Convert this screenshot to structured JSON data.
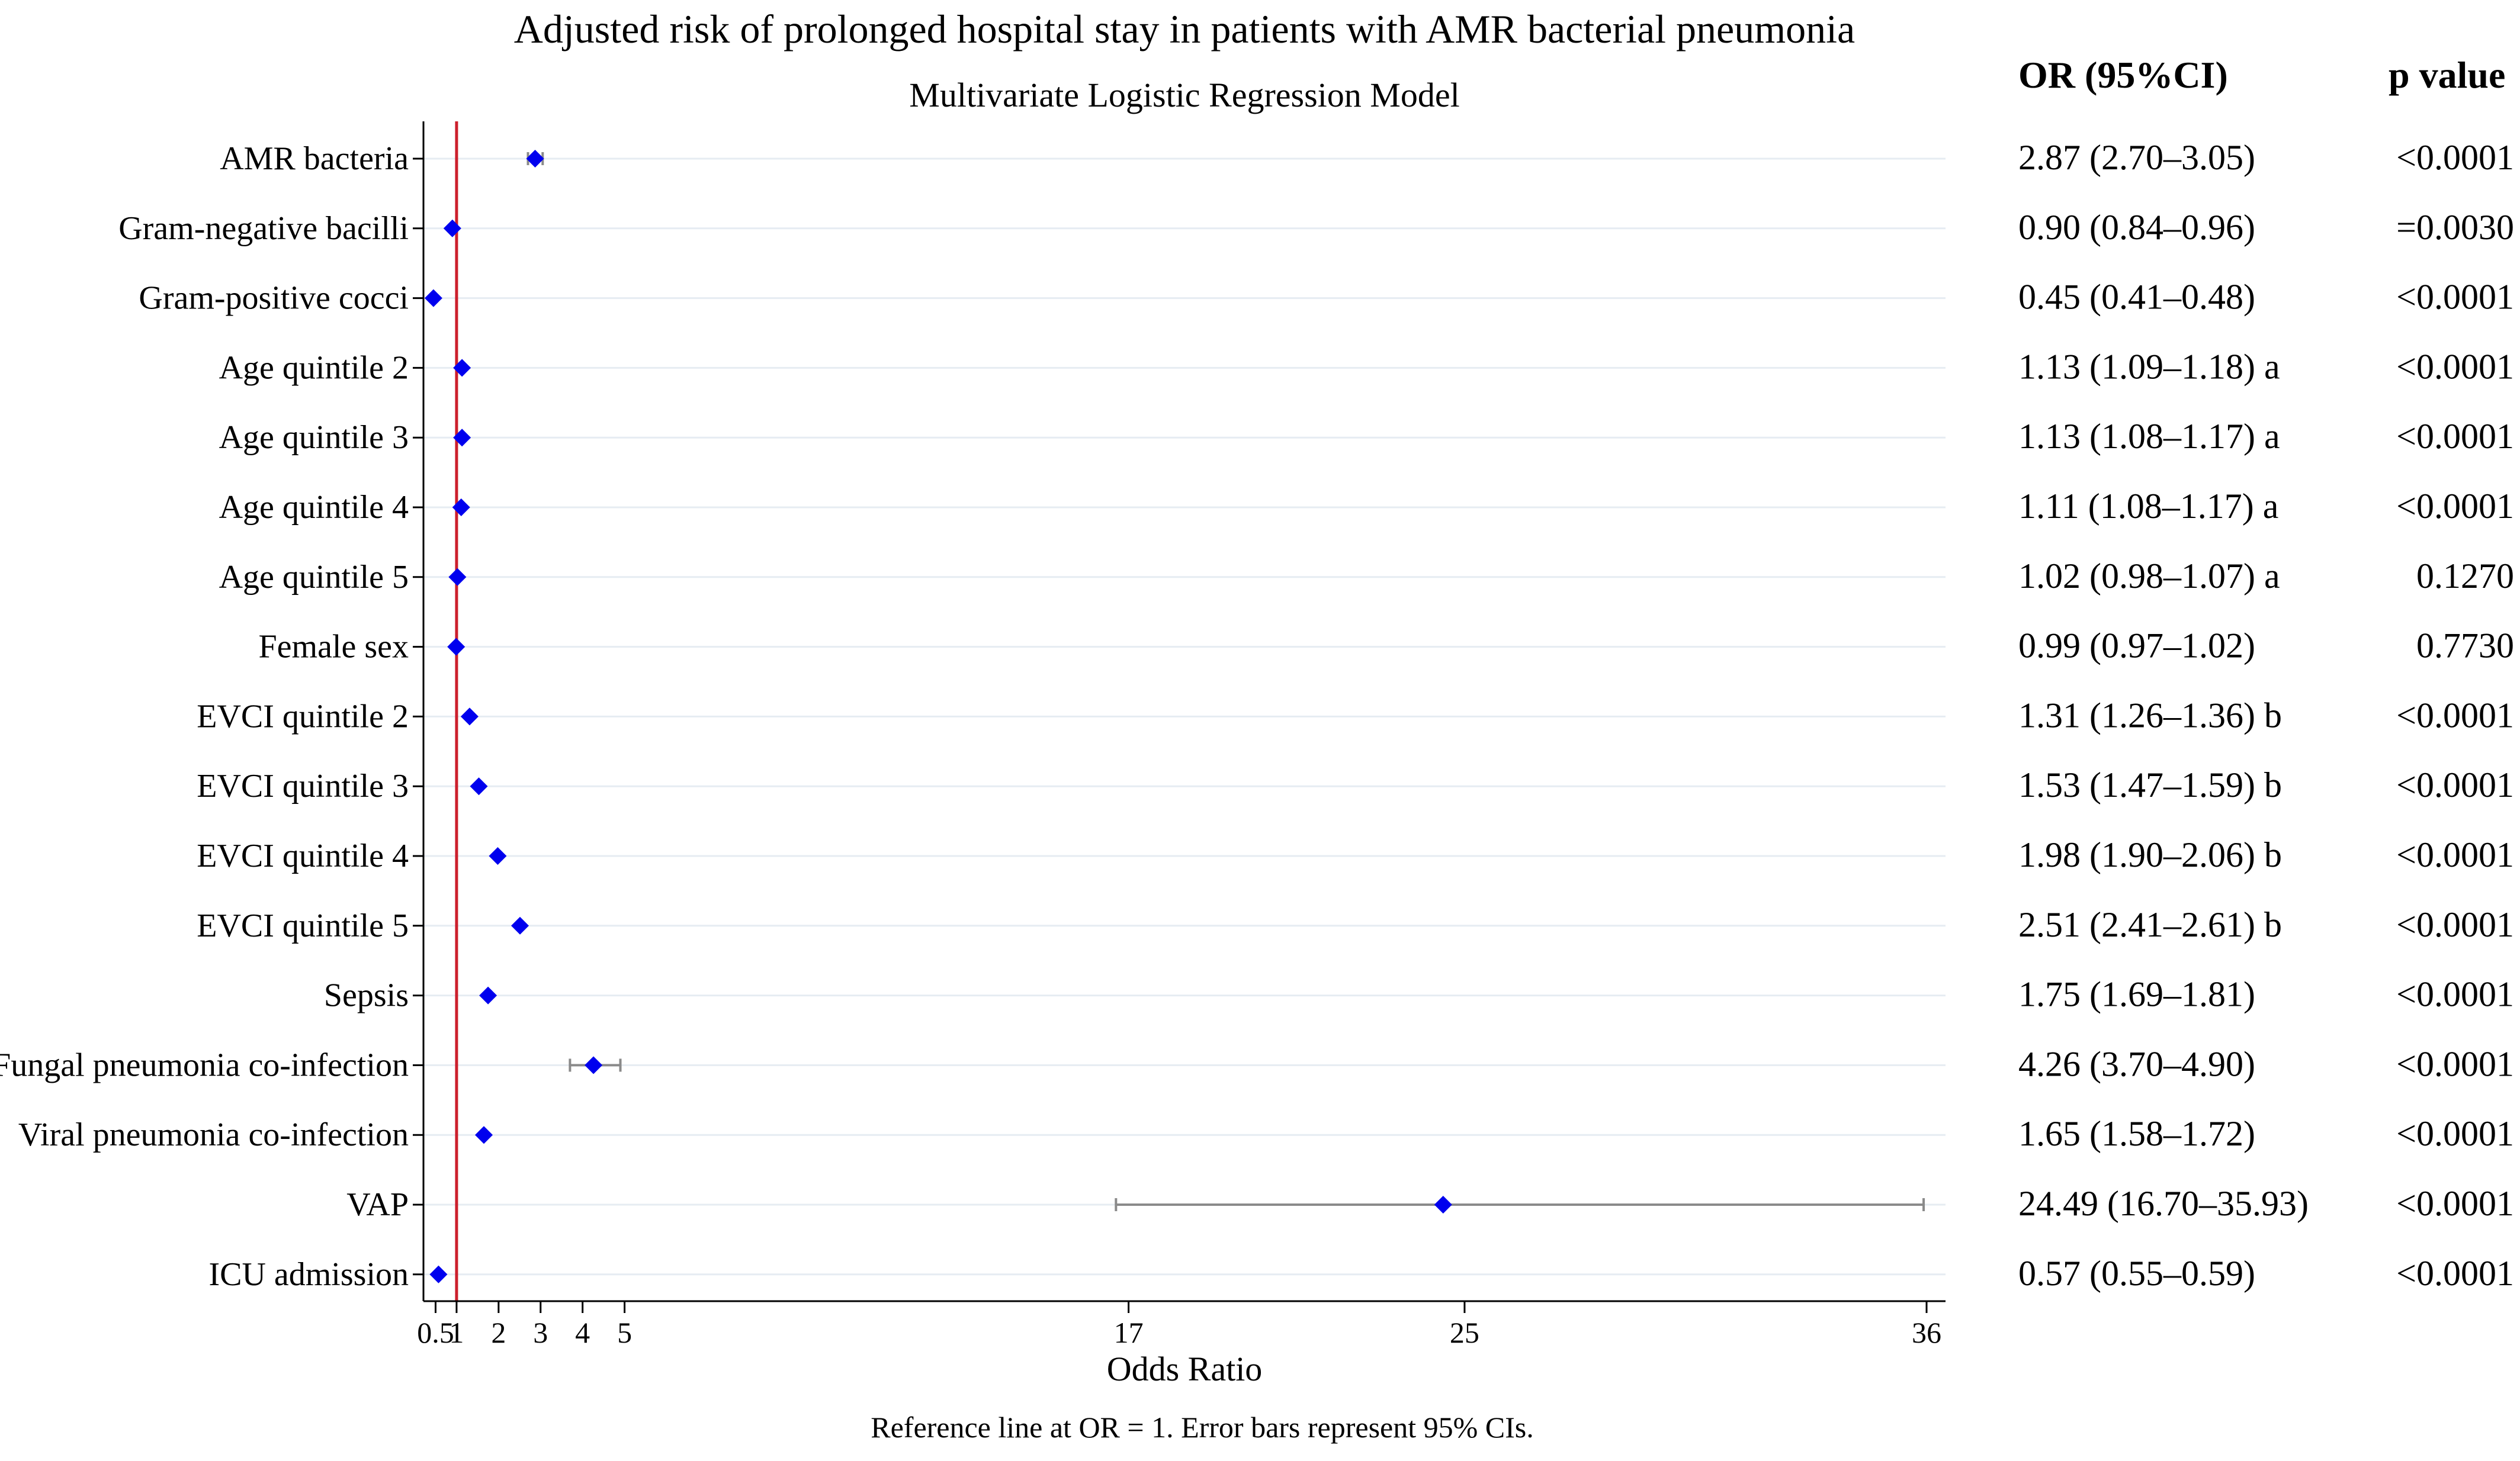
{
  "chart_data": {
    "type": "forest",
    "title": "Adjusted risk of prolonged hospital stay in patients with AMR bacterial pneumonia",
    "subtitle": "Multivariate Logistic Regression Model",
    "xlabel": "Odds Ratio",
    "x_ticks": [
      0.5,
      1,
      2,
      3,
      4,
      5,
      17,
      25,
      36
    ],
    "x_tick_labels": [
      "0.5",
      "1",
      "2",
      "3",
      "4",
      "5",
      "17",
      "25",
      "36"
    ],
    "reference_line": 1,
    "note": "Reference line at OR = 1. Error bars represent 95% CIs.",
    "column_headers": {
      "or": "OR (95%CI)",
      "p": "p value"
    },
    "rows": [
      {
        "label": "AMR bacteria",
        "or": 2.87,
        "lo": 2.7,
        "hi": 3.05,
        "or_text": "2.87 (2.70–3.05)",
        "p_text": "<0.0001"
      },
      {
        "label": "Gram-negative bacilli",
        "or": 0.9,
        "lo": 0.84,
        "hi": 0.96,
        "or_text": "0.90 (0.84–0.96)",
        "p_text": "=0.0030"
      },
      {
        "label": "Gram-positive cocci",
        "or": 0.45,
        "lo": 0.41,
        "hi": 0.48,
        "or_text": "0.45 (0.41–0.48)",
        "p_text": "<0.0001"
      },
      {
        "label": "Age quintile 2",
        "or": 1.13,
        "lo": 1.09,
        "hi": 1.18,
        "or_text": "1.13 (1.09–1.18) a",
        "p_text": "<0.0001"
      },
      {
        "label": "Age quintile 3",
        "or": 1.13,
        "lo": 1.08,
        "hi": 1.17,
        "or_text": "1.13 (1.08–1.17) a",
        "p_text": "<0.0001"
      },
      {
        "label": "Age quintile 4",
        "or": 1.11,
        "lo": 1.08,
        "hi": 1.17,
        "or_text": "1.11 (1.08–1.17) a",
        "p_text": "<0.0001"
      },
      {
        "label": "Age quintile 5",
        "or": 1.02,
        "lo": 0.98,
        "hi": 1.07,
        "or_text": "1.02 (0.98–1.07) a",
        "p_text": "0.1270"
      },
      {
        "label": "Female sex",
        "or": 0.99,
        "lo": 0.97,
        "hi": 1.02,
        "or_text": "0.99 (0.97–1.02)",
        "p_text": "0.7730"
      },
      {
        "label": "EVCI quintile 2",
        "or": 1.31,
        "lo": 1.26,
        "hi": 1.36,
        "or_text": "1.31 (1.26–1.36) b",
        "p_text": "<0.0001"
      },
      {
        "label": "EVCI quintile 3",
        "or": 1.53,
        "lo": 1.47,
        "hi": 1.59,
        "or_text": "1.53 (1.47–1.59) b",
        "p_text": "<0.0001"
      },
      {
        "label": "EVCI quintile 4",
        "or": 1.98,
        "lo": 1.9,
        "hi": 2.06,
        "or_text": "1.98 (1.90–2.06) b",
        "p_text": "<0.0001"
      },
      {
        "label": "EVCI quintile 5",
        "or": 2.51,
        "lo": 2.41,
        "hi": 2.61,
        "or_text": "2.51 (2.41–2.61) b",
        "p_text": "<0.0001"
      },
      {
        "label": "Sepsis",
        "or": 1.75,
        "lo": 1.69,
        "hi": 1.81,
        "or_text": "1.75 (1.69–1.81)",
        "p_text": "<0.0001"
      },
      {
        "label": "Fungal pneumonia co-infection",
        "or": 4.26,
        "lo": 3.7,
        "hi": 4.9,
        "or_text": "4.26 (3.70–4.90)",
        "p_text": "<0.0001"
      },
      {
        "label": "Viral pneumonia co-infection",
        "or": 1.65,
        "lo": 1.58,
        "hi": 1.72,
        "or_text": "1.65 (1.58–1.72)",
        "p_text": "<0.0001"
      },
      {
        "label": "VAP",
        "or": 24.49,
        "lo": 16.7,
        "hi": 35.93,
        "or_text": "24.49 (16.70–35.93)",
        "p_text": "<0.0001"
      },
      {
        "label": "ICU admission",
        "or": 0.57,
        "lo": 0.55,
        "hi": 0.59,
        "or_text": "0.57 (0.55–0.59)",
        "p_text": "<0.0001"
      }
    ],
    "colors": {
      "point": "#0000ee",
      "reference_line": "#cc1f2c",
      "ci": "#8a8a8a",
      "grid": "#e6ecf2",
      "axis": "#000000"
    }
  }
}
